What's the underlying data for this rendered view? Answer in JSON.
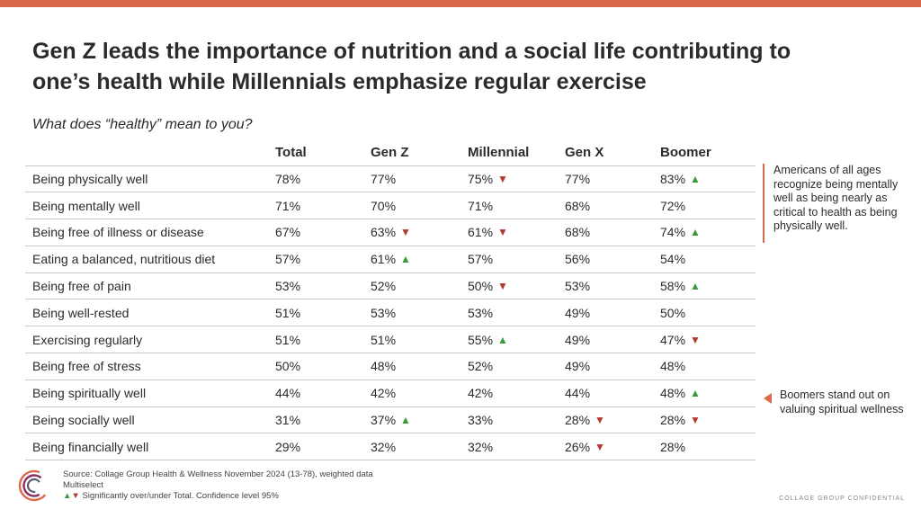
{
  "headline": "Gen Z leads the importance of nutrition and a social life contributing to one’s health while Millennials emphasize regular exercise",
  "question": "What does “healthy” mean to you?",
  "columns": [
    "",
    "Total",
    "Gen Z",
    "Millennial",
    "Gen X",
    "Boomer"
  ],
  "rows": [
    {
      "label": "Being physically well",
      "cells": [
        {
          "v": "78%"
        },
        {
          "v": "77%"
        },
        {
          "v": "75%",
          "s": "down"
        },
        {
          "v": "77%"
        },
        {
          "v": "83%",
          "s": "up"
        }
      ]
    },
    {
      "label": "Being mentally well",
      "cells": [
        {
          "v": "71%"
        },
        {
          "v": "70%"
        },
        {
          "v": "71%"
        },
        {
          "v": "68%"
        },
        {
          "v": "72%"
        }
      ]
    },
    {
      "label": "Being free of illness or disease",
      "cells": [
        {
          "v": "67%"
        },
        {
          "v": "63%",
          "s": "down"
        },
        {
          "v": "61%",
          "s": "down"
        },
        {
          "v": "68%"
        },
        {
          "v": "74%",
          "s": "up"
        }
      ]
    },
    {
      "label": "Eating a balanced, nutritious diet",
      "cells": [
        {
          "v": "57%"
        },
        {
          "v": "61%",
          "s": "up"
        },
        {
          "v": "57%"
        },
        {
          "v": "56%"
        },
        {
          "v": "54%"
        }
      ]
    },
    {
      "label": "Being free of pain",
      "cells": [
        {
          "v": "53%"
        },
        {
          "v": "52%"
        },
        {
          "v": "50%",
          "s": "down"
        },
        {
          "v": "53%"
        },
        {
          "v": "58%",
          "s": "up"
        }
      ]
    },
    {
      "label": "Being well-rested",
      "cells": [
        {
          "v": "51%"
        },
        {
          "v": "53%"
        },
        {
          "v": "53%"
        },
        {
          "v": "49%"
        },
        {
          "v": "50%"
        }
      ]
    },
    {
      "label": "Exercising regularly",
      "cells": [
        {
          "v": "51%"
        },
        {
          "v": "51%"
        },
        {
          "v": "55%",
          "s": "up"
        },
        {
          "v": "49%"
        },
        {
          "v": "47%",
          "s": "down"
        }
      ]
    },
    {
      "label": "Being free of stress",
      "cells": [
        {
          "v": "50%"
        },
        {
          "v": "48%"
        },
        {
          "v": "52%"
        },
        {
          "v": "49%"
        },
        {
          "v": "48%"
        }
      ]
    },
    {
      "label": "Being spiritually well",
      "cells": [
        {
          "v": "44%"
        },
        {
          "v": "42%"
        },
        {
          "v": "42%"
        },
        {
          "v": "44%"
        },
        {
          "v": "48%",
          "s": "up"
        }
      ]
    },
    {
      "label": "Being socially well",
      "cells": [
        {
          "v": "31%"
        },
        {
          "v": "37%",
          "s": "up"
        },
        {
          "v": "33%"
        },
        {
          "v": "28%",
          "s": "down"
        },
        {
          "v": "28%",
          "s": "down"
        }
      ]
    },
    {
      "label": "Being financially well",
      "cells": [
        {
          "v": "29%"
        },
        {
          "v": "32%"
        },
        {
          "v": "32%"
        },
        {
          "v": "26%",
          "s": "down"
        },
        {
          "v": "28%"
        }
      ]
    }
  ],
  "notes": {
    "mental": "Americans of all ages recognize being mentally well as being nearly as critical to health as being physically well.",
    "spiritual": "Boomers stand out on valuing spiritual wellness"
  },
  "footer": {
    "source": "Source: Collage Group Health & Wellness November 2024 (13-78), weighted data",
    "multiselect": "Multiselect",
    "significance": "Significantly over/under Total. Confidence level 95%",
    "confidential": "COLLAGE GROUP CONFIDENTIAL"
  },
  "colors": {
    "accent": "#d9694a",
    "up": "#3a9a3a",
    "down": "#b03a2e"
  },
  "icons": {
    "up": "▲",
    "down": "▼"
  }
}
